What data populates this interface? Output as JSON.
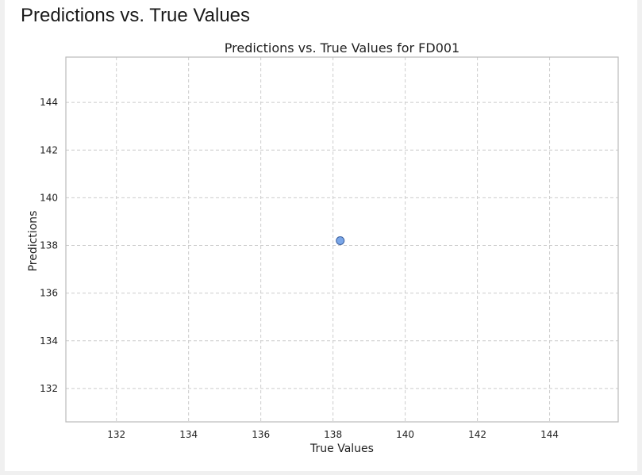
{
  "page": {
    "title": "Predictions vs. True Values"
  },
  "chart_data": {
    "type": "scatter",
    "title": "Predictions vs. True Values for FD001",
    "xlabel": "True Values",
    "ylabel": "Predictions",
    "xlim": [
      130.6,
      145.9
    ],
    "ylim": [
      130.6,
      145.9
    ],
    "xticks": [
      132,
      134,
      136,
      138,
      140,
      142,
      144
    ],
    "yticks": [
      132,
      134,
      136,
      138,
      140,
      142,
      144
    ],
    "grid": true,
    "points": [
      {
        "x": 138.2,
        "y": 138.2
      }
    ],
    "colors": {
      "marker_fill": "#7aa6e8",
      "marker_stroke": "#3a5f9e",
      "grid": "#cccccc",
      "frame": "#bbbbbb"
    }
  }
}
